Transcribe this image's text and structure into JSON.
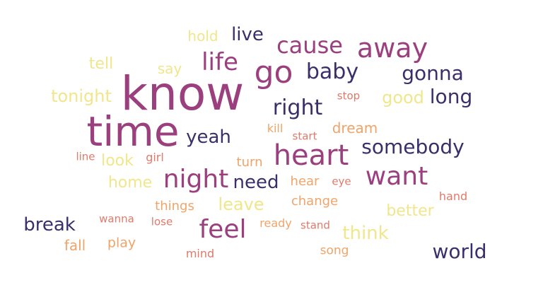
{
  "wordcloud": {
    "palette": {
      "cream": "#F0E68C",
      "peach": "#F0A46A",
      "coral": "#E07A6A",
      "magenta": "#9B3F7E",
      "navy": "#3B2F6B"
    },
    "words": [
      {
        "text": "know",
        "color": "#9B3F7E"
      },
      {
        "text": "time",
        "color": "#9B3F7E"
      },
      {
        "text": "go",
        "color": "#9B3F7E"
      },
      {
        "text": "heart",
        "color": "#9B3F7E"
      },
      {
        "text": "away",
        "color": "#9B3F7E"
      },
      {
        "text": "cause",
        "color": "#9B3F7E"
      },
      {
        "text": "life",
        "color": "#9B3F7E"
      },
      {
        "text": "night",
        "color": "#9B3F7E"
      },
      {
        "text": "want",
        "color": "#9B3F7E"
      },
      {
        "text": "feel",
        "color": "#9B3F7E"
      },
      {
        "text": "baby",
        "color": "#3B2F6B"
      },
      {
        "text": "gonna",
        "color": "#3B2F6B"
      },
      {
        "text": "right",
        "color": "#3B2F6B"
      },
      {
        "text": "live",
        "color": "#3B2F6B"
      },
      {
        "text": "long",
        "color": "#3B2F6B"
      },
      {
        "text": "somebody",
        "color": "#3B2F6B"
      },
      {
        "text": "yeah",
        "color": "#3B2F6B"
      },
      {
        "text": "need",
        "color": "#3B2F6B"
      },
      {
        "text": "break",
        "color": "#3B2F6B"
      },
      {
        "text": "world",
        "color": "#3B2F6B"
      },
      {
        "text": "hold",
        "color": "#F0E68C"
      },
      {
        "text": "tell",
        "color": "#F0E68C"
      },
      {
        "text": "say",
        "color": "#F0E68C"
      },
      {
        "text": "tonight",
        "color": "#F0E68C"
      },
      {
        "text": "good",
        "color": "#F0E68C"
      },
      {
        "text": "look",
        "color": "#F0E68C"
      },
      {
        "text": "home",
        "color": "#F0E68C"
      },
      {
        "text": "leave",
        "color": "#F0E68C"
      },
      {
        "text": "better",
        "color": "#F0E68C"
      },
      {
        "text": "think",
        "color": "#F0E68C"
      },
      {
        "text": "stop",
        "color": "#E07A6A"
      },
      {
        "text": "kill",
        "color": "#F0A46A"
      },
      {
        "text": "start",
        "color": "#E07A6A"
      },
      {
        "text": "dream",
        "color": "#F0A46A"
      },
      {
        "text": "line",
        "color": "#E07A6A"
      },
      {
        "text": "girl",
        "color": "#E07A6A"
      },
      {
        "text": "turn",
        "color": "#F0A46A"
      },
      {
        "text": "hear",
        "color": "#F0A46A"
      },
      {
        "text": "eye",
        "color": "#E07A6A"
      },
      {
        "text": "hand",
        "color": "#E07A6A"
      },
      {
        "text": "things",
        "color": "#F0A46A"
      },
      {
        "text": "change",
        "color": "#F0A46A"
      },
      {
        "text": "wanna",
        "color": "#E07A6A"
      },
      {
        "text": "lose",
        "color": "#E07A6A"
      },
      {
        "text": "ready",
        "color": "#F0A46A"
      },
      {
        "text": "stand",
        "color": "#E07A6A"
      },
      {
        "text": "fall",
        "color": "#F0A46A"
      },
      {
        "text": "play",
        "color": "#F0A46A"
      },
      {
        "text": "mind",
        "color": "#E07A6A"
      },
      {
        "text": "song",
        "color": "#F0A46A"
      }
    ]
  }
}
